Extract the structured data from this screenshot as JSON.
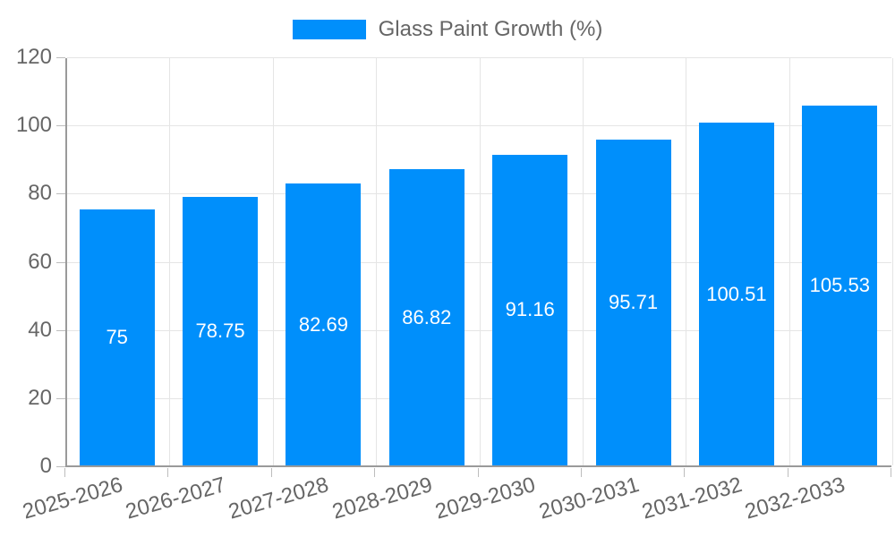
{
  "legend": {
    "label": "Glass Paint Growth (%)",
    "swatch_color": "#008FFB"
  },
  "chart_data": {
    "type": "bar",
    "title": "Glass Paint Growth (%)",
    "categories": [
      "2025-2026",
      "2026-2027",
      "2027-2028",
      "2028-2029",
      "2029-2030",
      "2030-2031",
      "2031-2032",
      "2032-2033"
    ],
    "values": [
      75,
      78.75,
      82.69,
      86.82,
      91.16,
      95.71,
      100.51,
      105.53
    ],
    "value_labels": [
      "75",
      "78.75",
      "82.69",
      "86.82",
      "91.16",
      "95.71",
      "100.51",
      "105.53"
    ],
    "xlabel": "",
    "ylabel": "",
    "ylim": [
      0,
      120
    ],
    "yticks": [
      0,
      20,
      40,
      60,
      80,
      100,
      120
    ],
    "grid": true,
    "legend_position": "top",
    "bar_color": "#008FFB",
    "value_label_color": "#ffffff"
  },
  "colors": {
    "axis": "#9a9a9a",
    "gridline": "#e5e5e5",
    "tick_text": "#666666",
    "legend_text": "#666666"
  }
}
